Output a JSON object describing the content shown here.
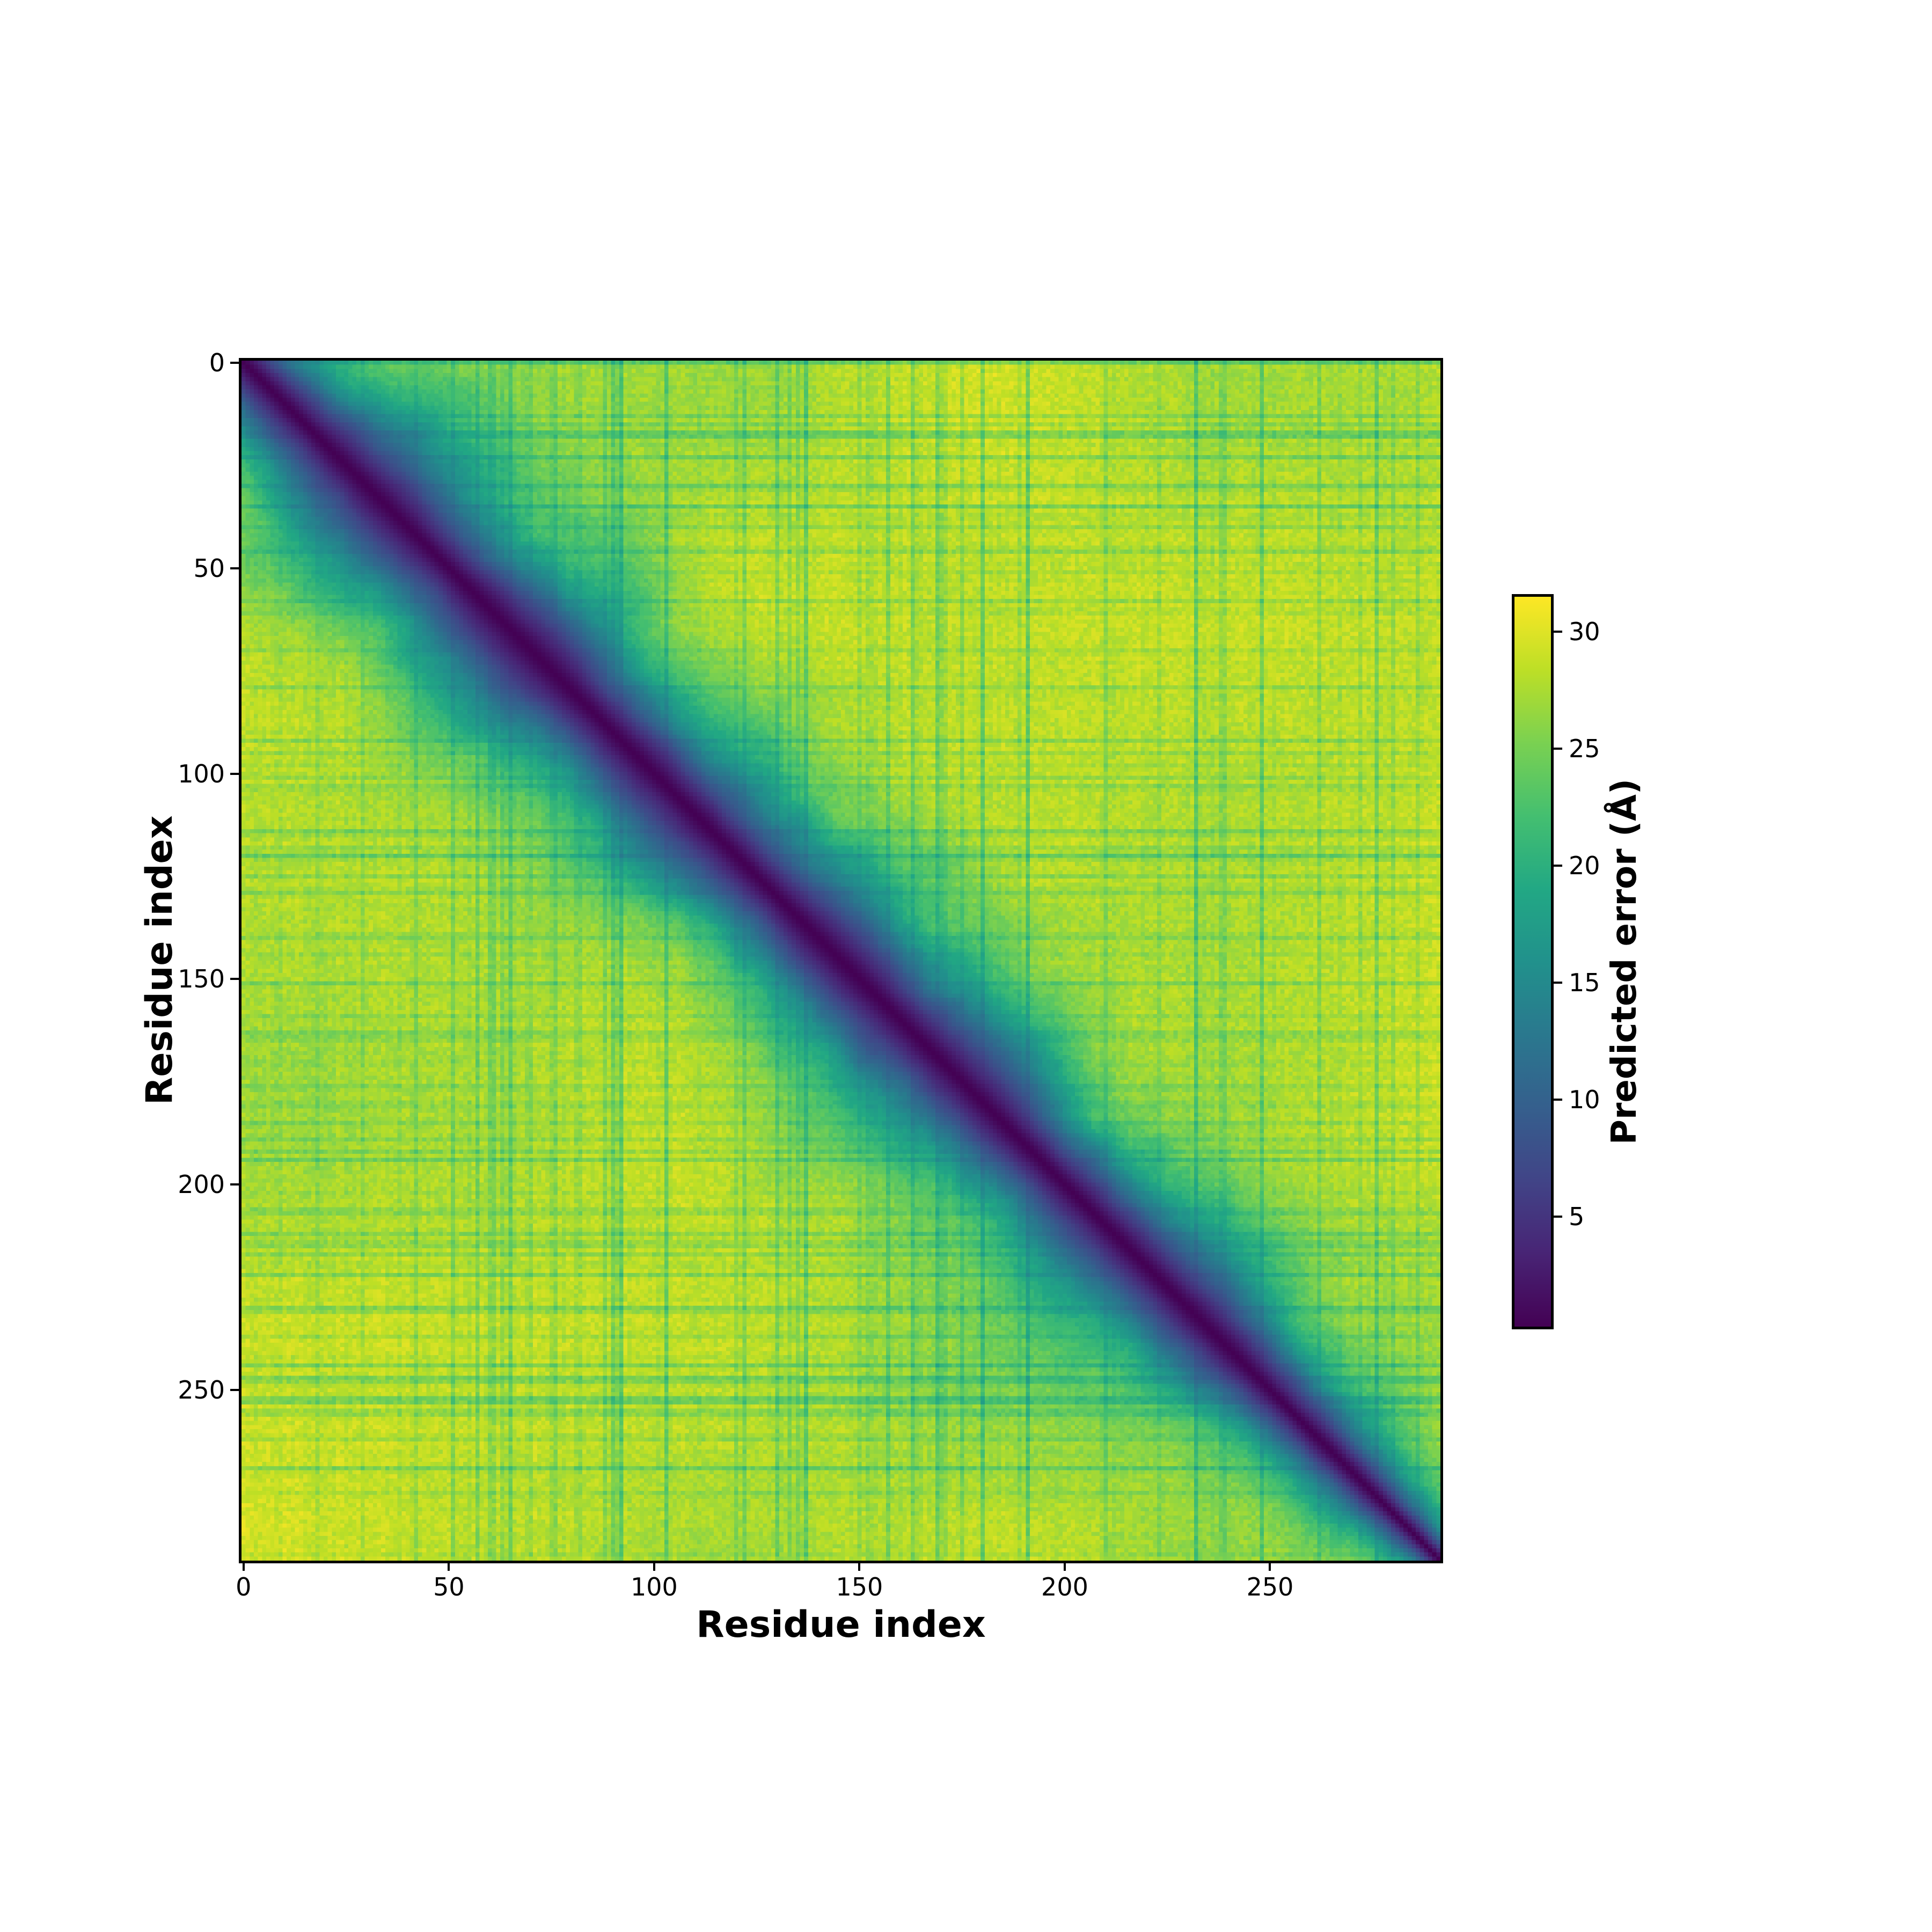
{
  "figure": {
    "background": "#ffffff",
    "xlabel": "Residue index",
    "ylabel": "Residue index"
  },
  "colorbar": {
    "label": "Predicted error (Å)",
    "ticks": [
      30,
      25,
      20,
      15,
      10,
      5
    ],
    "vmin": 0.3,
    "vmax": 31.5
  },
  "chart_data": {
    "type": "heatmap",
    "title": "",
    "xlabel": "Residue index",
    "ylabel": "Residue index",
    "value_label": "Predicted error (Å)",
    "n_residues": 292,
    "x_range": [
      0,
      291
    ],
    "y_range": [
      0,
      291
    ],
    "x_ticks": [
      0,
      50,
      100,
      150,
      200,
      250
    ],
    "y_ticks": [
      0,
      50,
      100,
      150,
      200,
      250
    ],
    "vmin": 0.3,
    "vmax": 31.5,
    "colormap": "viridis",
    "colormap_stops": [
      {
        "t": 0.0,
        "hex": "#440154"
      },
      {
        "t": 0.1,
        "hex": "#482475"
      },
      {
        "t": 0.2,
        "hex": "#414487"
      },
      {
        "t": 0.3,
        "hex": "#355f8d"
      },
      {
        "t": 0.4,
        "hex": "#2a788e"
      },
      {
        "t": 0.5,
        "hex": "#21918c"
      },
      {
        "t": 0.6,
        "hex": "#22a884"
      },
      {
        "t": 0.7,
        "hex": "#44bf70"
      },
      {
        "t": 0.8,
        "hex": "#7ad151"
      },
      {
        "t": 0.9,
        "hex": "#bddf26"
      },
      {
        "t": 1.0,
        "hex": "#fde725"
      }
    ],
    "pattern": {
      "description": "Predicted aligned error matrix: near-zero error (dark purple) along the main diagonal, rising through blue/teal/green to a saturated yellow background (~29-31 A) away from the diagonal; band width varies along the chain and faint green row/column streaks and speckle texture modulate the yellow background.",
      "seed": 7,
      "diag_profile_t": [
        0,
        12,
        30,
        50,
        70,
        90,
        110,
        130,
        150,
        165,
        180,
        195,
        215,
        235,
        255,
        272,
        291
      ],
      "diag_profile_w": [
        14,
        20,
        28,
        24,
        28,
        22,
        25,
        21,
        26,
        30,
        24,
        19,
        24,
        22,
        17,
        13,
        9
      ],
      "band_exponent": 1.35,
      "band_width_jitter": [
        0.75,
        0.6
      ],
      "streak_columns": [
        {
          "index": 18,
          "strength": 0.35
        },
        {
          "index": 42,
          "strength": 0.5
        },
        {
          "index": 63,
          "strength": 0.4
        },
        {
          "index": 88,
          "strength": 0.55
        },
        {
          "index": 91,
          "strength": 0.45
        },
        {
          "index": 120,
          "strength": 0.4
        },
        {
          "index": 133,
          "strength": 0.5
        },
        {
          "index": 152,
          "strength": 0.35
        },
        {
          "index": 170,
          "strength": 0.45
        },
        {
          "index": 189,
          "strength": 0.4
        },
        {
          "index": 210,
          "strength": 0.5
        },
        {
          "index": 223,
          "strength": 0.35
        },
        {
          "index": 238,
          "strength": 0.45
        },
        {
          "index": 262,
          "strength": 0.5
        },
        {
          "index": 280,
          "strength": 0.4
        }
      ],
      "streak_rows": [
        {
          "index": 15,
          "strength": 0.4
        },
        {
          "index": 40,
          "strength": 0.45
        },
        {
          "index": 70,
          "strength": 0.35
        },
        {
          "index": 95,
          "strength": 0.4
        },
        {
          "index": 118,
          "strength": 0.35
        },
        {
          "index": 140,
          "strength": 0.45
        },
        {
          "index": 163,
          "strength": 0.4
        },
        {
          "index": 185,
          "strength": 0.35
        },
        {
          "index": 207,
          "strength": 0.45
        },
        {
          "index": 230,
          "strength": 0.4
        },
        {
          "index": 255,
          "strength": 0.5
        },
        {
          "index": 275,
          "strength": 0.35
        }
      ],
      "streak_depth": 2.2,
      "speckle_amp": 1.1
    }
  }
}
